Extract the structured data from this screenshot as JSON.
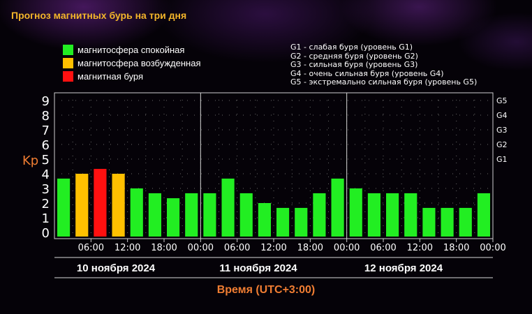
{
  "title": "Прогноз магнитных бурь на три дня",
  "legend": [
    {
      "label": "магнитосфера спокойная",
      "color": "#22ee22"
    },
    {
      "label": "магнитосфера возбужденная",
      "color": "#ffc000"
    },
    {
      "label": "магнитная буря",
      "color": "#ff1010"
    }
  ],
  "g_levels": [
    "G1 - слабая буря (уровень G1)",
    "G2 - средняя буря (уровень G2)",
    "G3 - сильная буря (уровень G3)",
    "G4 - очень сильная буря (уровень G4)",
    "G5 - экстремально сильная буря (уровень G5)"
  ],
  "chart_data": {
    "type": "bar",
    "ylabel": "Kp",
    "xlabel": "Время (UTC+3:00)",
    "ylim": [
      0,
      9
    ],
    "yticks": [
      "0",
      "1",
      "2",
      "3",
      "4",
      "5",
      "6",
      "7",
      "8",
      "9"
    ],
    "right_ticks": [
      {
        "value": 5,
        "label": "G1"
      },
      {
        "value": 6,
        "label": "G2"
      },
      {
        "value": 7,
        "label": "G3"
      },
      {
        "value": 8,
        "label": "G4"
      },
      {
        "value": 9,
        "label": "G5"
      }
    ],
    "x_tick_labels": [
      "06:00",
      "12:00",
      "18:00",
      "00:00",
      "06:00",
      "12:00",
      "18:00",
      "00:00",
      "06:00",
      "12:00",
      "18:00",
      "00:00"
    ],
    "days": [
      "10 ноября 2024",
      "11 ноября 2024",
      "12 ноября 2024"
    ],
    "values": [
      3.67,
      4.0,
      4.33,
      4.0,
      3.0,
      2.67,
      2.33,
      2.67,
      2.67,
      3.67,
      2.67,
      2.0,
      1.67,
      1.67,
      2.67,
      3.67,
      3.0,
      2.67,
      2.67,
      2.67,
      1.67,
      1.67,
      1.67,
      2.67
    ],
    "levels": [
      "quiet",
      "active",
      "storm",
      "active",
      "quiet",
      "quiet",
      "quiet",
      "quiet",
      "quiet",
      "quiet",
      "quiet",
      "quiet",
      "quiet",
      "quiet",
      "quiet",
      "quiet",
      "quiet",
      "quiet",
      "quiet",
      "quiet",
      "quiet",
      "quiet",
      "quiet",
      "quiet"
    ],
    "colors": {
      "quiet": "#22ee22",
      "active": "#ffc000",
      "storm": "#ff1010"
    },
    "grid": true
  }
}
